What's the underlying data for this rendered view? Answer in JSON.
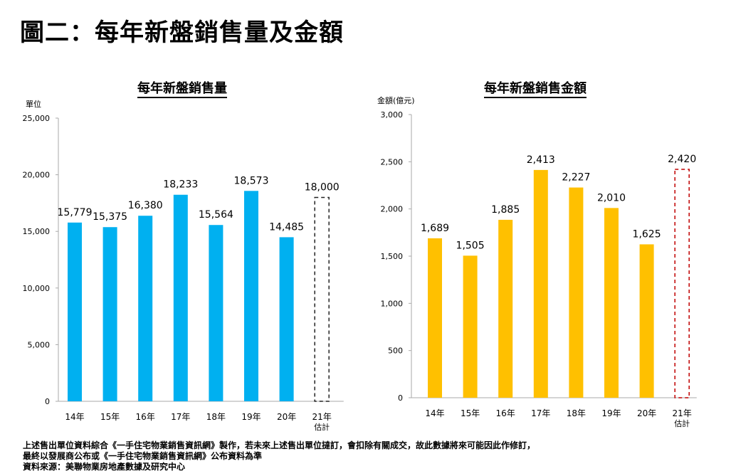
{
  "title": "圖二：每年新盤銷售量及金額",
  "notes": [
    "上述售出單位資料綜合《一手住宅物業銷售資訊網》製作，若未來上述售出單位撻訂，會扣除有關成交，故此數據將來可能因此作修訂，",
    "最終以發展商公布或《一手住宅物業銷售資訊網》公布資料為準",
    "資料來源：美聯物業房地產數據及研究中心"
  ],
  "chart_data": [
    {
      "type": "bar",
      "title": "每年新盤銷售量",
      "ylabel": "單位",
      "ylim": [
        0,
        25000
      ],
      "yticks": [
        0,
        5000,
        10000,
        15000,
        20000,
        25000
      ],
      "ytick_labels": [
        "0",
        "5,000",
        "10,000",
        "15,000",
        "20,000",
        "25,000"
      ],
      "categories": [
        "14年",
        "15年",
        "16年",
        "17年",
        "18年",
        "19年",
        "20年",
        "21年"
      ],
      "sublabels": [
        "",
        "",
        "",
        "",
        "",
        "",
        "",
        "估計"
      ],
      "values": [
        15779,
        15375,
        16380,
        18233,
        15564,
        18573,
        14485,
        18000
      ],
      "labels": [
        "15,779",
        "15,375",
        "16,380",
        "18,233",
        "15,564",
        "18,573",
        "14,485",
        "18,000"
      ],
      "estimate": [
        false,
        false,
        false,
        false,
        false,
        false,
        false,
        true
      ],
      "color": "#00b0f0",
      "estimate_color": "#222222"
    },
    {
      "type": "bar",
      "title": "每年新盤銷售金額",
      "ylabel": "金額(億元)",
      "ylim": [
        0,
        3000
      ],
      "yticks": [
        0,
        500,
        1000,
        1500,
        2000,
        2500,
        3000
      ],
      "ytick_labels": [
        "0",
        "500",
        "1,000",
        "1,500",
        "2,000",
        "2,500",
        "3,000"
      ],
      "categories": [
        "14年",
        "15年",
        "16年",
        "17年",
        "18年",
        "19年",
        "20年",
        "21年"
      ],
      "sublabels": [
        "",
        "",
        "",
        "",
        "",
        "",
        "",
        "估計"
      ],
      "values": [
        1689,
        1505,
        1885,
        2413,
        2227,
        2010,
        1625,
        2420
      ],
      "labels": [
        "1,689",
        "1,505",
        "1,885",
        "2,413",
        "2,227",
        "2,010",
        "1,625",
        "2,420"
      ],
      "estimate": [
        false,
        false,
        false,
        false,
        false,
        false,
        false,
        true
      ],
      "color": "#ffc000",
      "estimate_color": "#c00000"
    }
  ]
}
